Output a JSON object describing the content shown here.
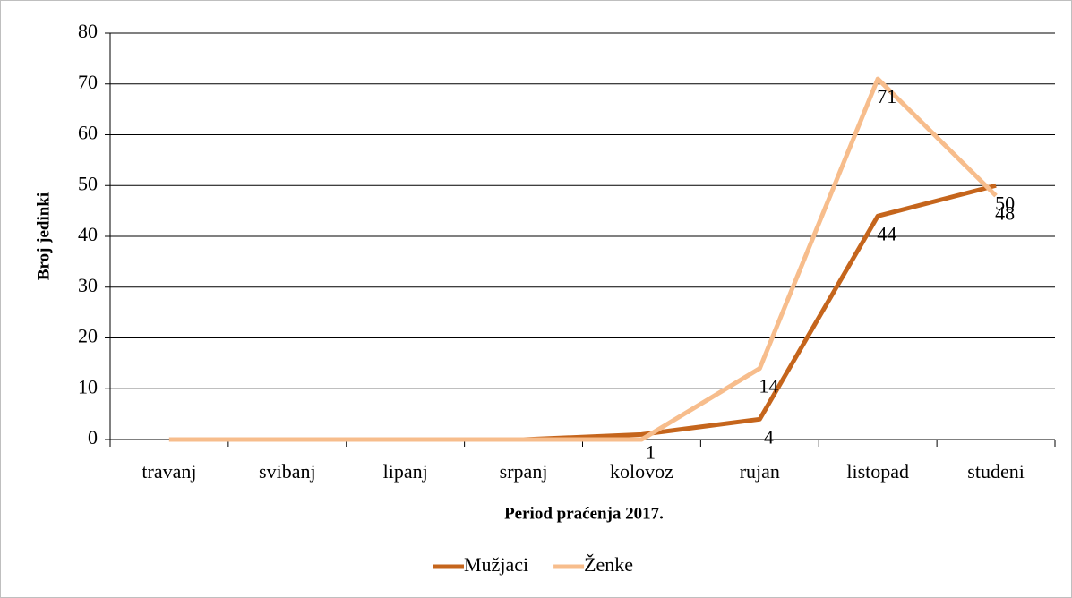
{
  "chart_data": {
    "type": "line",
    "x_label": "Period praćenja 2017.",
    "y_label": "Broj jedinki",
    "categories": [
      "travanj",
      "svibanj",
      "lipanj",
      "srpanj",
      "kolovoz",
      "rujan",
      "listopad",
      "studeni"
    ],
    "series": [
      {
        "name": "Mužjaci",
        "color": "#c5651c",
        "values": [
          0,
          0,
          0,
          0,
          1,
          4,
          44,
          50
        ],
        "value_labels": [
          null,
          null,
          null,
          null,
          "1",
          "4",
          "44",
          "50"
        ]
      },
      {
        "name": "Ženke",
        "color": "#f7bd8c",
        "values": [
          0,
          0,
          0,
          0,
          0,
          14,
          71,
          48
        ],
        "value_labels": [
          null,
          null,
          null,
          null,
          null,
          "14",
          "71",
          "48"
        ]
      }
    ],
    "ylim": [
      0,
      80
    ],
    "yticks": [
      0,
      10,
      20,
      30,
      40,
      50,
      60,
      70,
      80
    ],
    "grid": true,
    "legend": "bottom"
  }
}
